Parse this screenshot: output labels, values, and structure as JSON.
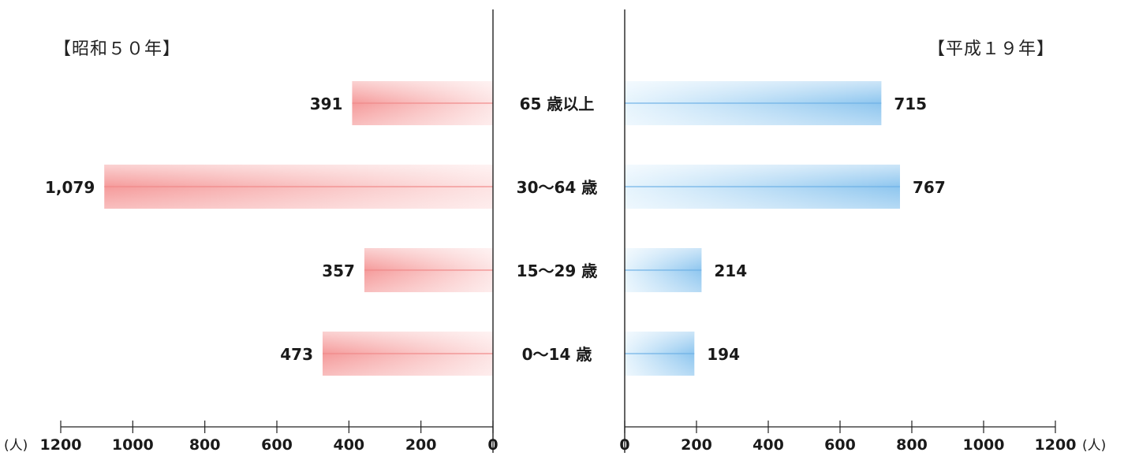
{
  "chart_data": [
    {
      "type": "bar",
      "title": "【昭和５０年】",
      "categories": [
        "65 歳以上",
        "30～64 歳",
        "15～29 歳",
        "0～14 歳"
      ],
      "values": [
        391,
        1079,
        357,
        473
      ],
      "value_labels": [
        "391",
        "1,079",
        "357",
        "473"
      ],
      "xlim": [
        1200,
        0
      ],
      "ticks": [
        "1200",
        "1000",
        "800",
        "600",
        "400",
        "200",
        "0"
      ],
      "unit": "(人)",
      "color": "#f39a9a"
    },
    {
      "type": "bar",
      "title": "【平成１９年】",
      "categories": [
        "65 歳以上",
        "30～64 歳",
        "15～29 歳",
        "0～14 歳"
      ],
      "values": [
        715,
        767,
        214,
        194
      ],
      "value_labels": [
        "715",
        "767",
        "214",
        "194"
      ],
      "xlim": [
        0,
        1200
      ],
      "ticks": [
        "0",
        "200",
        "400",
        "600",
        "800",
        "1000",
        "1200"
      ],
      "unit": "(人)",
      "color": "#8cc4ee"
    }
  ]
}
